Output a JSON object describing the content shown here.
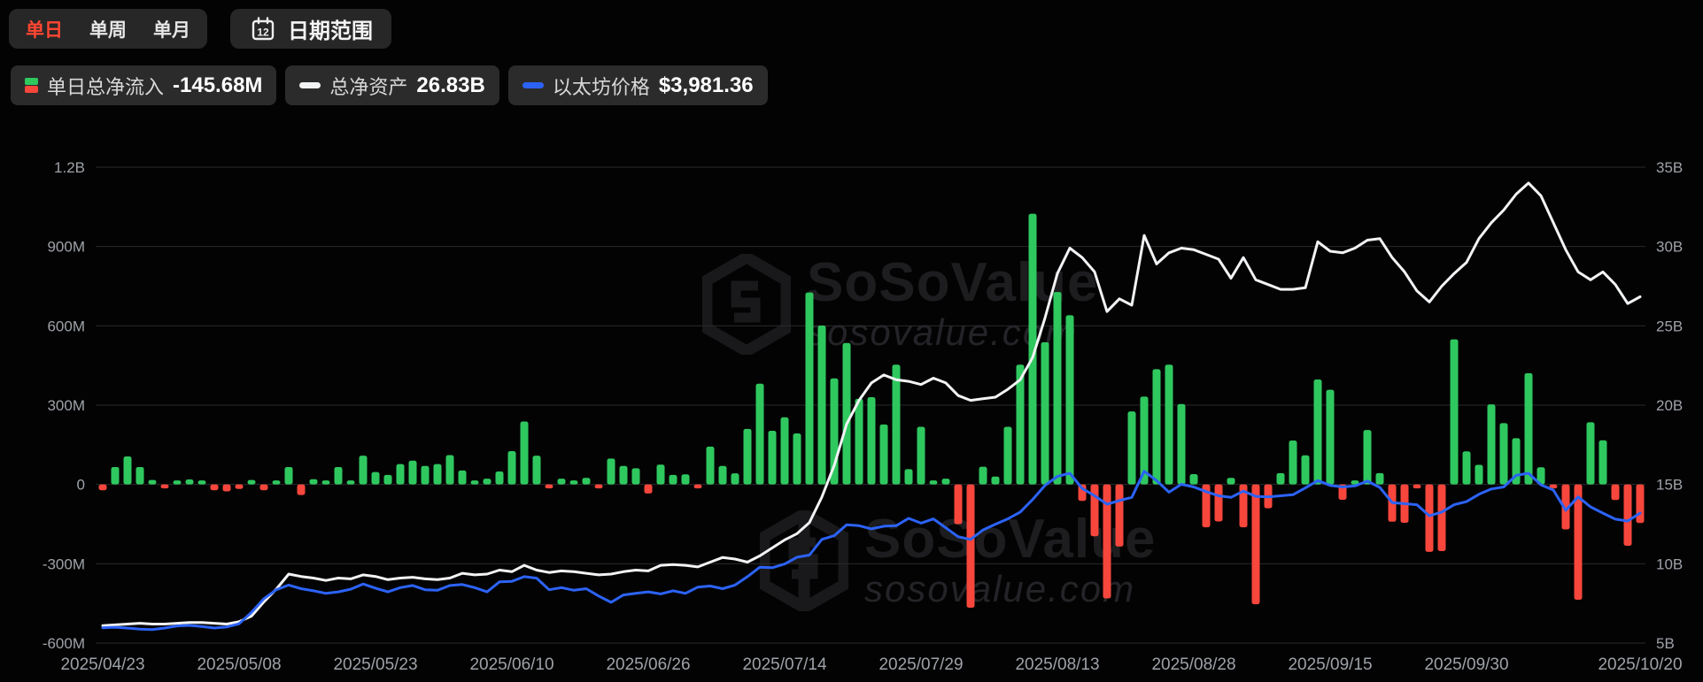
{
  "header": {
    "tabs": [
      {
        "label": "单日",
        "active": true
      },
      {
        "label": "单周",
        "active": false
      },
      {
        "label": "单月",
        "active": false
      }
    ],
    "date_range_button": {
      "label": "日期范围",
      "icon_day": "12"
    }
  },
  "legend": [
    {
      "label": "单日总净流入",
      "value": "-145.68M"
    },
    {
      "label": "总净资产",
      "value": "26.83B"
    },
    {
      "label": "以太坊价格",
      "value": "$3,981.36"
    }
  ],
  "watermark": {
    "brand": "SoSoValue",
    "domain": "sosovalue.com"
  },
  "chart_data": {
    "type": "bar",
    "title": "Ethereum ETF daily total net inflow vs total net assets and ETH price",
    "grid": true,
    "legend_position": "top-left",
    "colors": {
      "grid": "#2A2A2D",
      "axis_text": "#9EA2A8",
      "inflow_green": "#2FC85F",
      "outflow_red": "#F7463C",
      "assets_white": "#F2F3F5",
      "price_blue": "#2C63F7",
      "active_tab_red": "#FF4632"
    },
    "left_axis": {
      "ticks": [
        "1.2B",
        "900M",
        "600M",
        "300M",
        "0",
        "-300M",
        "-600M"
      ],
      "range_m": [
        -600,
        1200
      ],
      "m_per_gridline": 300,
      "unit": "M (USD)"
    },
    "right_axis": {
      "ticks": [
        "35B",
        "30B",
        "25B",
        "20B",
        "15B",
        "10B",
        "5B"
      ],
      "range": [
        5,
        35
      ],
      "b_per_gridline": 5,
      "unit": "B (USD)"
    },
    "price_axis_range_usd": [
      1503,
      10575
    ],
    "x_ticks": [
      {
        "label": "2025/04/23",
        "day_index": 0
      },
      {
        "label": "2025/05/08",
        "day_index": 11
      },
      {
        "label": "2025/05/23",
        "day_index": 22
      },
      {
        "label": "2025/06/10",
        "day_index": 33
      },
      {
        "label": "2025/06/26",
        "day_index": 44
      },
      {
        "label": "2025/07/14",
        "day_index": 55
      },
      {
        "label": "2025/07/29",
        "day_index": 66
      },
      {
        "label": "2025/08/13",
        "day_index": 77
      },
      {
        "label": "2025/08/28",
        "day_index": 88
      },
      {
        "label": "2025/09/15",
        "day_index": 99
      },
      {
        "label": "2025/09/30",
        "day_index": 110
      },
      {
        "label": "2025/10/20",
        "day_index": 124
      }
    ],
    "dates": [
      "2025/04/23",
      "2025/04/24",
      "2025/04/25",
      "2025/04/28",
      "2025/04/29",
      "2025/04/30",
      "2025/05/01",
      "2025/05/02",
      "2025/05/05",
      "2025/05/06",
      "2025/05/07",
      "2025/05/08",
      "2025/05/09",
      "2025/05/12",
      "2025/05/13",
      "2025/05/14",
      "2025/05/15",
      "2025/05/16",
      "2025/05/19",
      "2025/05/20",
      "2025/05/21",
      "2025/05/22",
      "2025/05/23",
      "2025/05/27",
      "2025/05/28",
      "2025/05/29",
      "2025/05/30",
      "2025/06/02",
      "2025/06/03",
      "2025/06/04",
      "2025/06/05",
      "2025/06/06",
      "2025/06/09",
      "2025/06/10",
      "2025/06/11",
      "2025/06/12",
      "2025/06/13",
      "2025/06/16",
      "2025/06/17",
      "2025/06/18",
      "2025/06/20",
      "2025/06/23",
      "2025/06/24",
      "2025/06/25",
      "2025/06/26",
      "2025/06/27",
      "2025/06/30",
      "2025/07/01",
      "2025/07/02",
      "2025/07/03",
      "2025/07/07",
      "2025/07/08",
      "2025/07/09",
      "2025/07/10",
      "2025/07/11",
      "2025/07/14",
      "2025/07/15",
      "2025/07/16",
      "2025/07/17",
      "2025/07/18",
      "2025/07/21",
      "2025/07/22",
      "2025/07/23",
      "2025/07/24",
      "2025/07/25",
      "2025/07/28",
      "2025/07/29",
      "2025/07/30",
      "2025/07/31",
      "2025/08/01",
      "2025/08/04",
      "2025/08/05",
      "2025/08/06",
      "2025/08/07",
      "2025/08/08",
      "2025/08/11",
      "2025/08/12",
      "2025/08/13",
      "2025/08/14",
      "2025/08/15",
      "2025/08/18",
      "2025/08/19",
      "2025/08/20",
      "2025/08/21",
      "2025/08/22",
      "2025/08/25",
      "2025/08/26",
      "2025/08/27",
      "2025/08/28",
      "2025/08/29",
      "2025/09/02",
      "2025/09/03",
      "2025/09/04",
      "2025/09/05",
      "2025/09/08",
      "2025/09/09",
      "2025/09/10",
      "2025/09/11",
      "2025/09/12",
      "2025/09/15",
      "2025/09/16",
      "2025/09/17",
      "2025/09/18",
      "2025/09/19",
      "2025/09/22",
      "2025/09/23",
      "2025/09/24",
      "2025/09/25",
      "2025/09/26",
      "2025/09/29",
      "2025/09/30",
      "2025/10/01",
      "2025/10/02",
      "2025/10/03",
      "2025/10/06",
      "2025/10/07",
      "2025/10/08",
      "2025/10/09",
      "2025/10/10",
      "2025/10/13",
      "2025/10/14",
      "2025/10/15",
      "2025/10/16",
      "2025/10/17",
      "2025/10/20"
    ],
    "series": [
      {
        "name": "单日总净流入",
        "type": "bar",
        "axis": "left",
        "unit": "M",
        "values": [
          -22,
          66,
          106,
          66,
          17,
          -6,
          9,
          19,
          2,
          -22,
          -26,
          -17,
          17,
          -22,
          11,
          66,
          -40,
          20,
          13,
          66,
          2,
          109,
          47,
          36,
          77,
          90,
          70,
          77,
          111,
          53,
          13,
          22,
          49,
          126,
          238,
          109,
          -6,
          22,
          11,
          25,
          -9,
          98,
          70,
          61,
          -34,
          75,
          36,
          38,
          -6,
          143,
          70,
          42,
          210,
          381,
          203,
          254,
          193,
          726,
          601,
          401,
          535,
          324,
          330,
          227,
          453,
          58,
          218,
          13,
          22,
          -150,
          -466,
          67,
          30,
          218,
          453,
          1024,
          538,
          728,
          640,
          -62,
          -196,
          -431,
          -235,
          276,
          332,
          436,
          453,
          304,
          39,
          -162,
          -140,
          25,
          -162,
          -453,
          -90,
          43,
          166,
          110,
          397,
          358,
          -58,
          5,
          206,
          43,
          -141,
          -145,
          -15,
          -255,
          -252,
          549,
          125,
          74,
          303,
          232,
          175,
          421,
          65,
          -14,
          -170,
          -436,
          235,
          167,
          -59,
          -232,
          -145.68
        ]
      },
      {
        "name": "总净资产",
        "type": "line",
        "axis": "right",
        "unit": "B",
        "values": [
          6.1,
          6.15,
          6.2,
          6.25,
          6.2,
          6.2,
          6.25,
          6.3,
          6.3,
          6.25,
          6.2,
          6.35,
          6.7,
          7.6,
          8.4,
          9.35,
          9.2,
          9.1,
          8.95,
          9.1,
          9.05,
          9.3,
          9.2,
          9.0,
          9.1,
          9.15,
          9.05,
          9.0,
          9.1,
          9.4,
          9.3,
          9.35,
          9.6,
          9.5,
          9.9,
          9.6,
          9.45,
          9.55,
          9.5,
          9.4,
          9.3,
          9.35,
          9.5,
          9.6,
          9.55,
          9.9,
          9.95,
          9.9,
          9.8,
          10.1,
          10.4,
          10.3,
          10.1,
          10.5,
          11.0,
          11.5,
          11.9,
          12.6,
          14.2,
          16.2,
          18.8,
          20.3,
          21.4,
          21.9,
          21.6,
          21.5,
          21.3,
          21.7,
          21.4,
          20.6,
          20.3,
          20.4,
          20.5,
          21.0,
          21.6,
          23.0,
          25.5,
          28.3,
          29.9,
          29.3,
          28.4,
          25.9,
          26.7,
          26.3,
          30.7,
          28.9,
          29.6,
          29.9,
          29.8,
          29.5,
          29.2,
          28.0,
          29.3,
          27.9,
          27.6,
          27.3,
          27.3,
          27.4,
          30.3,
          29.7,
          29.6,
          29.9,
          30.4,
          30.5,
          29.3,
          28.4,
          27.2,
          26.5,
          27.5,
          28.3,
          29.0,
          30.5,
          31.5,
          32.3,
          33.3,
          34.0,
          33.2,
          31.5,
          29.8,
          28.4,
          27.9,
          28.4,
          27.6,
          26.4,
          26.83
        ]
      },
      {
        "name": "以太坊价格",
        "type": "line",
        "axis": "hidden_price",
        "unit": "USD",
        "values": [
          1795,
          1805,
          1790,
          1770,
          1760,
          1790,
          1830,
          1840,
          1820,
          1790,
          1810,
          1870,
          2090,
          2350,
          2520,
          2610,
          2540,
          2500,
          2450,
          2480,
          2530,
          2630,
          2550,
          2480,
          2560,
          2600,
          2520,
          2510,
          2600,
          2620,
          2560,
          2480,
          2670,
          2680,
          2770,
          2740,
          2520,
          2560,
          2510,
          2540,
          2400,
          2280,
          2420,
          2450,
          2480,
          2440,
          2500,
          2450,
          2570,
          2590,
          2540,
          2610,
          2770,
          2950,
          2940,
          3010,
          3140,
          3180,
          3480,
          3550,
          3760,
          3740,
          3680,
          3730,
          3740,
          3880,
          3790,
          3870,
          3700,
          3530,
          3480,
          3660,
          3770,
          3870,
          4000,
          4240,
          4510,
          4680,
          4740,
          4450,
          4310,
          4150,
          4220,
          4280,
          4780,
          4600,
          4380,
          4530,
          4480,
          4390,
          4310,
          4280,
          4400,
          4300,
          4290,
          4310,
          4330,
          4460,
          4600,
          4510,
          4480,
          4500,
          4590,
          4470,
          4180,
          4160,
          4140,
          3930,
          4000,
          4140,
          4200,
          4340,
          4440,
          4480,
          4700,
          4740,
          4520,
          4420,
          4035,
          4290,
          4100,
          3980,
          3865,
          3830,
          3981.36
        ]
      }
    ]
  }
}
